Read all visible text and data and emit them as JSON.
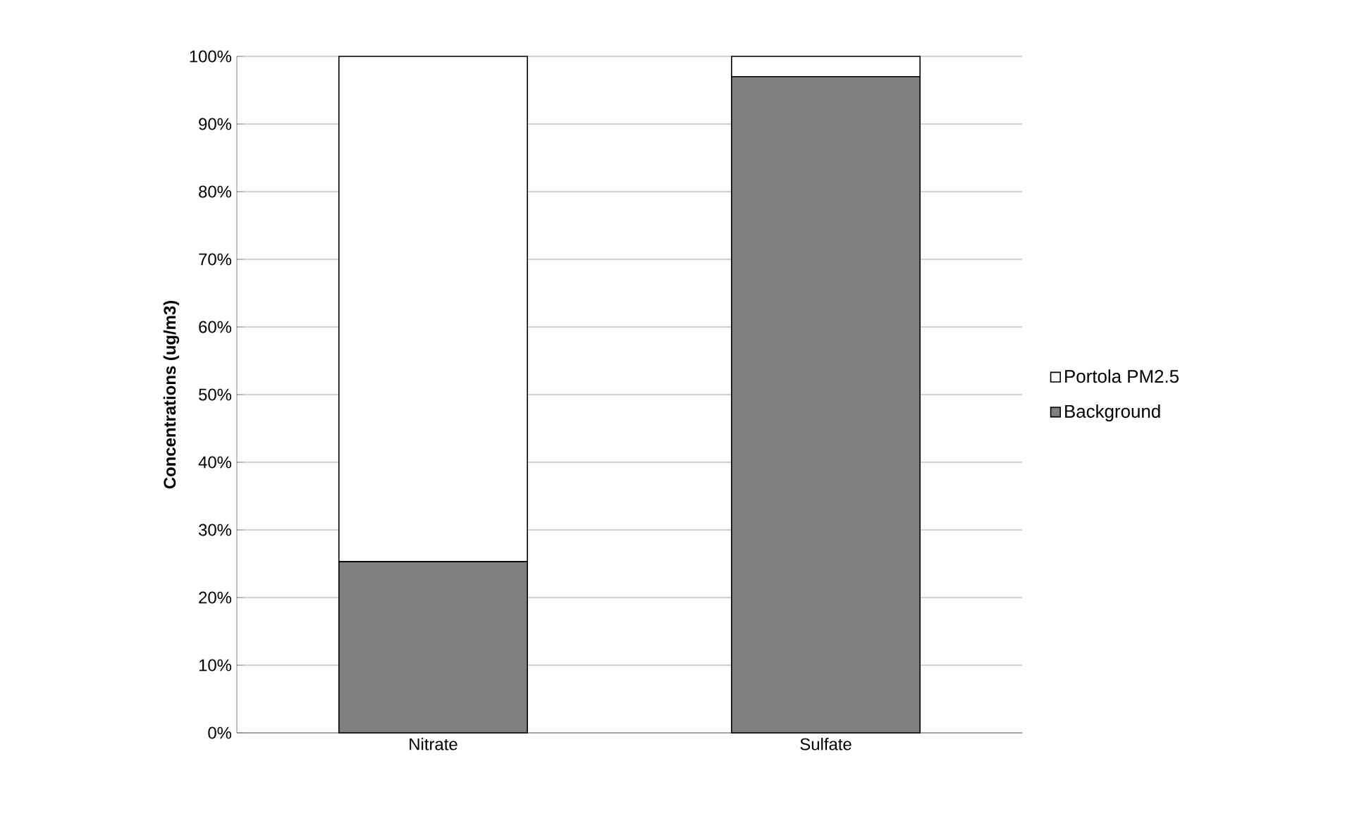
{
  "chart_data": {
    "type": "bar",
    "stacked": true,
    "ylabel": "Concentrations (ug/m3)",
    "categories": [
      "Nitrate",
      "Sulfate"
    ],
    "series": [
      {
        "name": "Background",
        "color": "#808080",
        "values": [
          25.3,
          97
        ]
      },
      {
        "name": "Portola PM2.5",
        "color": "#ffffff",
        "values": [
          74.7,
          3
        ]
      }
    ],
    "ylim": [
      0,
      100
    ],
    "yticks": [
      {
        "value": 0,
        "label": "0%"
      },
      {
        "value": 10,
        "label": "10%"
      },
      {
        "value": 20,
        "label": "20%"
      },
      {
        "value": 30,
        "label": "30%"
      },
      {
        "value": 40,
        "label": "40%"
      },
      {
        "value": 50,
        "label": "50%"
      },
      {
        "value": 60,
        "label": "60%"
      },
      {
        "value": 70,
        "label": "70%"
      },
      {
        "value": 80,
        "label": "80%"
      },
      {
        "value": 90,
        "label": "90%"
      },
      {
        "value": 100,
        "label": "100%"
      }
    ],
    "grid": "y",
    "legend": "right"
  }
}
